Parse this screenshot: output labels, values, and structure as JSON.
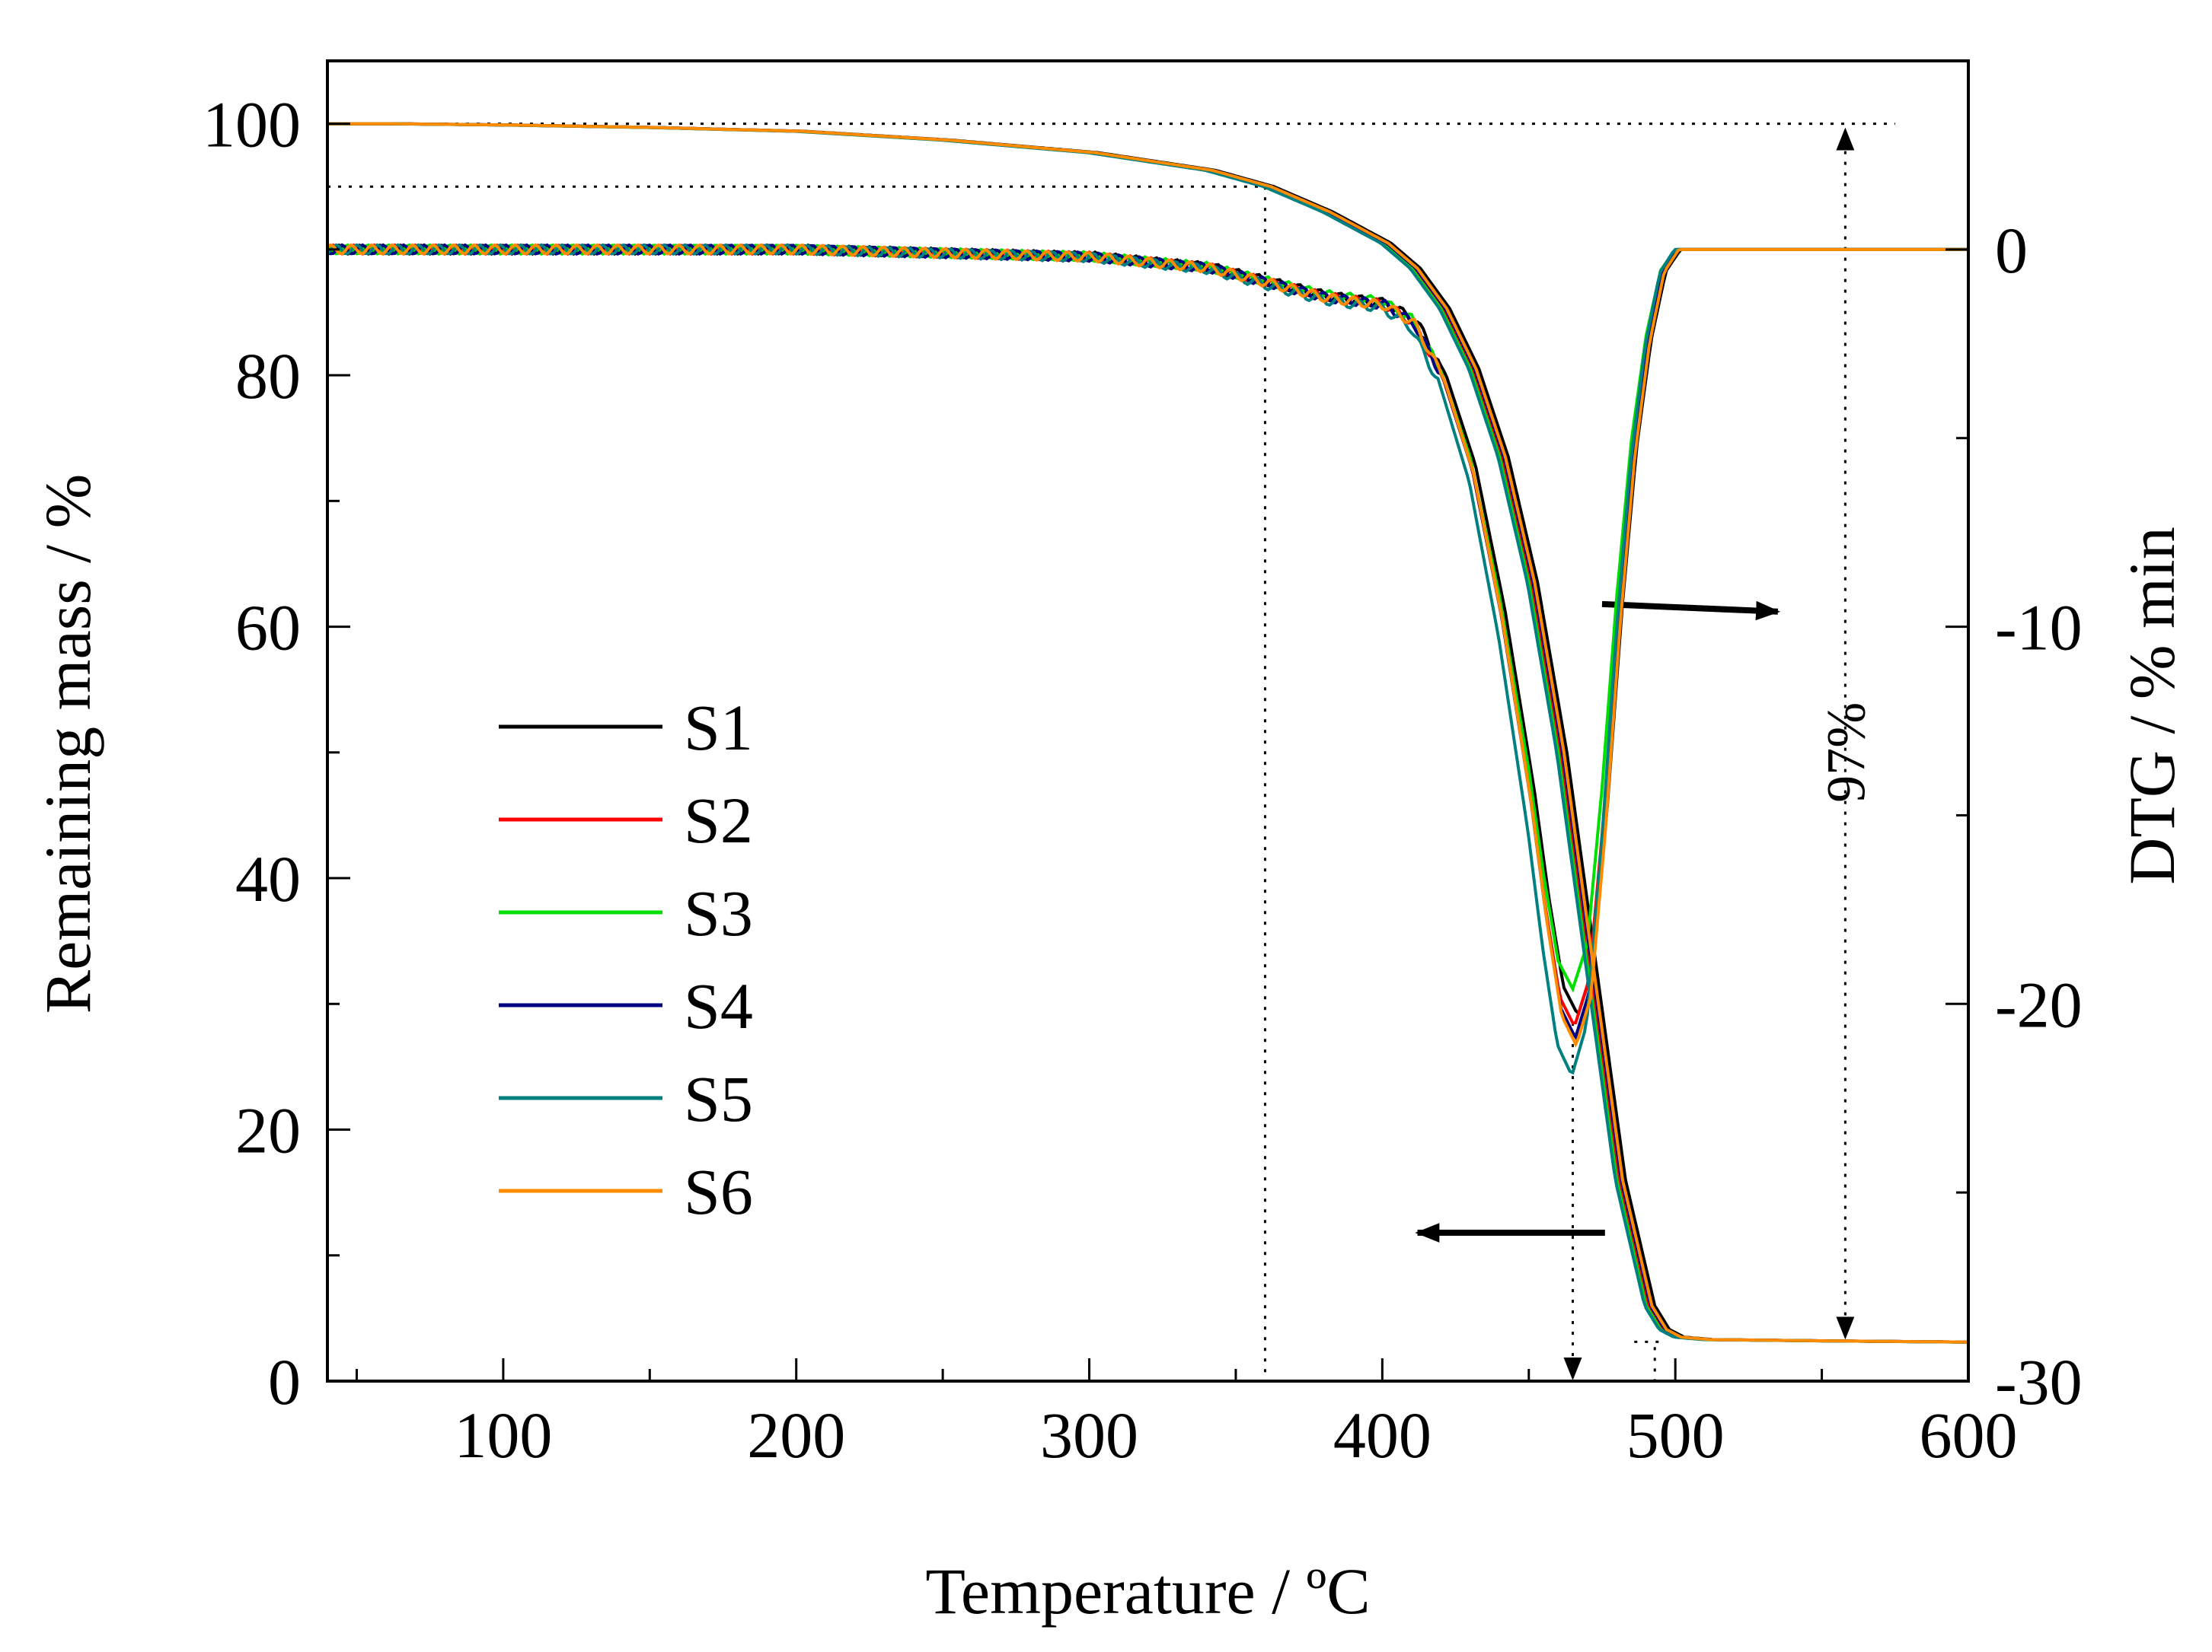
{
  "chart_data": {
    "type": "line",
    "xlabel": "Temperature / ºC",
    "ylabel_left": "Remaining mass / %",
    "ylabel_right": "DTG / % min",
    "xlim": [
      40,
      600
    ],
    "ylim_left": [
      0,
      105
    ],
    "ylim_right": [
      -30,
      5
    ],
    "x_ticks": [
      100,
      200,
      300,
      400,
      500,
      600
    ],
    "x_tick_labels": [
      "100",
      "200",
      "300",
      "400",
      "500",
      "600"
    ],
    "yl_ticks": [
      0,
      20,
      40,
      60,
      80,
      100
    ],
    "yl_tick_labels": [
      "0",
      "20",
      "40",
      "60",
      "80",
      "100"
    ],
    "yr_ticks": [
      0,
      -10,
      -20,
      -30
    ],
    "yr_tick_labels": [
      "0",
      "-10",
      "-20",
      "-30"
    ],
    "grid": false,
    "legend_position": "left-center",
    "annotation_text": "97%",
    "colors": {
      "S1": "#000000",
      "S2": "#ff0000",
      "S3": "#00e000",
      "S4": "#000080",
      "S5": "#008080",
      "S6": "#ff8c00"
    },
    "tga_base": {
      "x": [
        40,
        60,
        100,
        150,
        200,
        250,
        300,
        340,
        360,
        380,
        400,
        410,
        420,
        430,
        440,
        450,
        460,
        470,
        480,
        490,
        495,
        500,
        510,
        550,
        600
      ],
      "y": [
        100,
        100,
        99.9,
        99.7,
        99.4,
        98.7,
        97.7,
        96.3,
        95,
        93,
        90.5,
        88.5,
        85.3,
        80.5,
        73.5,
        63.5,
        50,
        33,
        16,
        6,
        4.1,
        3.5,
        3.3,
        3.2,
        3.1
      ]
    },
    "dtg_base": {
      "x": [
        40,
        100,
        200,
        300,
        340,
        360,
        380,
        400,
        410,
        420,
        430,
        440,
        450,
        455,
        460,
        465,
        470,
        475,
        480,
        485,
        490,
        495,
        500,
        520,
        560,
        600
      ],
      "y": [
        0,
        0,
        0,
        -0.2,
        -0.5,
        -0.9,
        -1.3,
        -1.5,
        -2,
        -3.5,
        -6,
        -10,
        -15,
        -18,
        -20.5,
        -21.3,
        -20,
        -15.5,
        -10,
        -5.5,
        -2.5,
        -0.6,
        0,
        0,
        0,
        0
      ]
    },
    "series": [
      {
        "name": "S1",
        "x_shift": 3,
        "dtg_min": -20.3
      },
      {
        "name": "S2",
        "x_shift": 1,
        "dtg_min": -20.6
      },
      {
        "name": "S3",
        "x_shift": 0,
        "dtg_min": -19.6
      },
      {
        "name": "S4",
        "x_shift": 1.5,
        "dtg_min": -20.9
      },
      {
        "name": "S5",
        "x_shift": -0.5,
        "dtg_min": -21.9
      },
      {
        "name": "S6",
        "x_shift": 2,
        "dtg_min": -21.1
      }
    ],
    "guides": {
      "onset_T": 360,
      "onset_mass": 95,
      "full_mass": 100,
      "peak_T": 465,
      "end_T": 493,
      "residue_mass": 3,
      "measure_T": 558,
      "guide_end_T": 575
    }
  }
}
